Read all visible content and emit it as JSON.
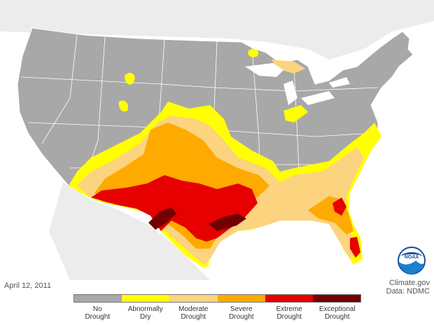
{
  "date": "April 12, 2011",
  "credit": {
    "line1": "Climate.gov",
    "line2": "Data: NDMC"
  },
  "logo_text": "NOAA",
  "colors": {
    "water": "#ffffff",
    "land_other": "#ececec",
    "no_drought": "#a8a8a8",
    "abnormally_dry": "#ffff00",
    "moderate": "#fcd37f",
    "severe": "#ffaa00",
    "extreme": "#e60000",
    "exceptional": "#730000"
  },
  "legend": [
    {
      "line1": "No",
      "line2": "Drought",
      "color": "#a8a8a8"
    },
    {
      "line1": "Abnormally",
      "line2": "Dry",
      "color": "#ffff00"
    },
    {
      "line1": "Moderate",
      "line2": "Drought",
      "color": "#fcd37f"
    },
    {
      "line1": "Severe",
      "line2": "Drought",
      "color": "#ffaa00"
    },
    {
      "line1": "Extreme",
      "line2": "Drought",
      "color": "#e60000"
    },
    {
      "line1": "Exceptional",
      "line2": "Drought",
      "color": "#730000"
    }
  ]
}
